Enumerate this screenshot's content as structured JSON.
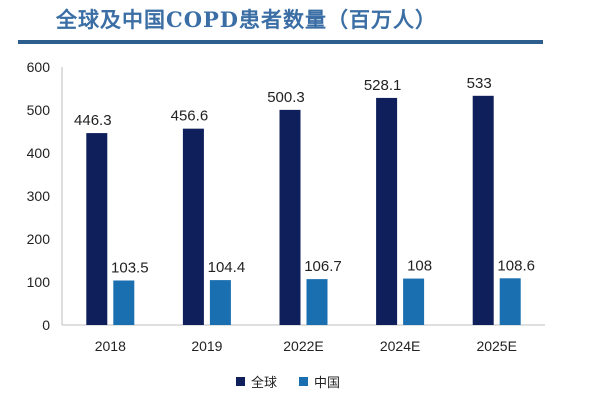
{
  "colors": {
    "series_global": "#0E1F5B",
    "series_china": "#1A6FB0",
    "title": "#3A6EA5"
  },
  "chart_data": {
    "type": "bar",
    "title": "全球及中国COPD患者数量（百万人）",
    "categories": [
      "2018",
      "2019",
      "2022E",
      "2024E",
      "2025E"
    ],
    "series": [
      {
        "name": "全球",
        "values": [
          446.3,
          456.6,
          500.3,
          528.1,
          533
        ],
        "labels": [
          "446.3",
          "456.6",
          "500.3",
          "528.1",
          "533"
        ]
      },
      {
        "name": "中国",
        "values": [
          103.5,
          104.4,
          106.7,
          108,
          108.6
        ],
        "labels": [
          "103.5",
          "104.4",
          "106.7",
          "108",
          "108.6"
        ]
      }
    ],
    "yticks": [
      "0",
      "100",
      "200",
      "300",
      "400",
      "500",
      "600"
    ],
    "ylim": [
      0,
      600
    ],
    "grid": false,
    "legend": "bottom"
  }
}
